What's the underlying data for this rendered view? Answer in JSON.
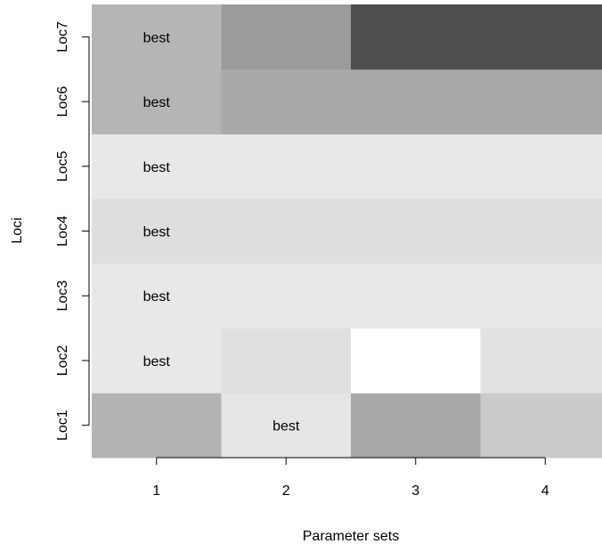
{
  "chart_data": {
    "type": "heatmap",
    "xlabel": "Parameter sets",
    "ylabel": "Loci",
    "x_categories": [
      "1",
      "2",
      "3",
      "4"
    ],
    "y_categories": [
      "Loc1",
      "Loc2",
      "Loc3",
      "Loc4",
      "Loc5",
      "Loc6",
      "Loc7"
    ],
    "cell_colors": [
      [
        "#b3b3b3",
        "#e6e6e6",
        "#a8a8a8",
        "#cacaca"
      ],
      [
        "#e8e8e8",
        "#dfdfdf",
        "#ffffff",
        "#e2e2e2"
      ],
      [
        "#e8e8e8",
        "#e8e8e8",
        "#e8e8e8",
        "#e8e8e8"
      ],
      [
        "#dedede",
        "#dedede",
        "#dedede",
        "#dedede"
      ],
      [
        "#e8e8e8",
        "#e8e8e8",
        "#e8e8e8",
        "#e8e8e8"
      ],
      [
        "#b5b5b5",
        "#a9a9a9",
        "#a9a9a9",
        "#a9a9a9"
      ],
      [
        "#b5b5b5",
        "#9b9b9b",
        "#4f4f4f",
        "#4f4f4f"
      ]
    ],
    "best_label": "best",
    "best_column": [
      2,
      1,
      1,
      1,
      1,
      1,
      1
    ],
    "grid": false,
    "legend": "none"
  }
}
